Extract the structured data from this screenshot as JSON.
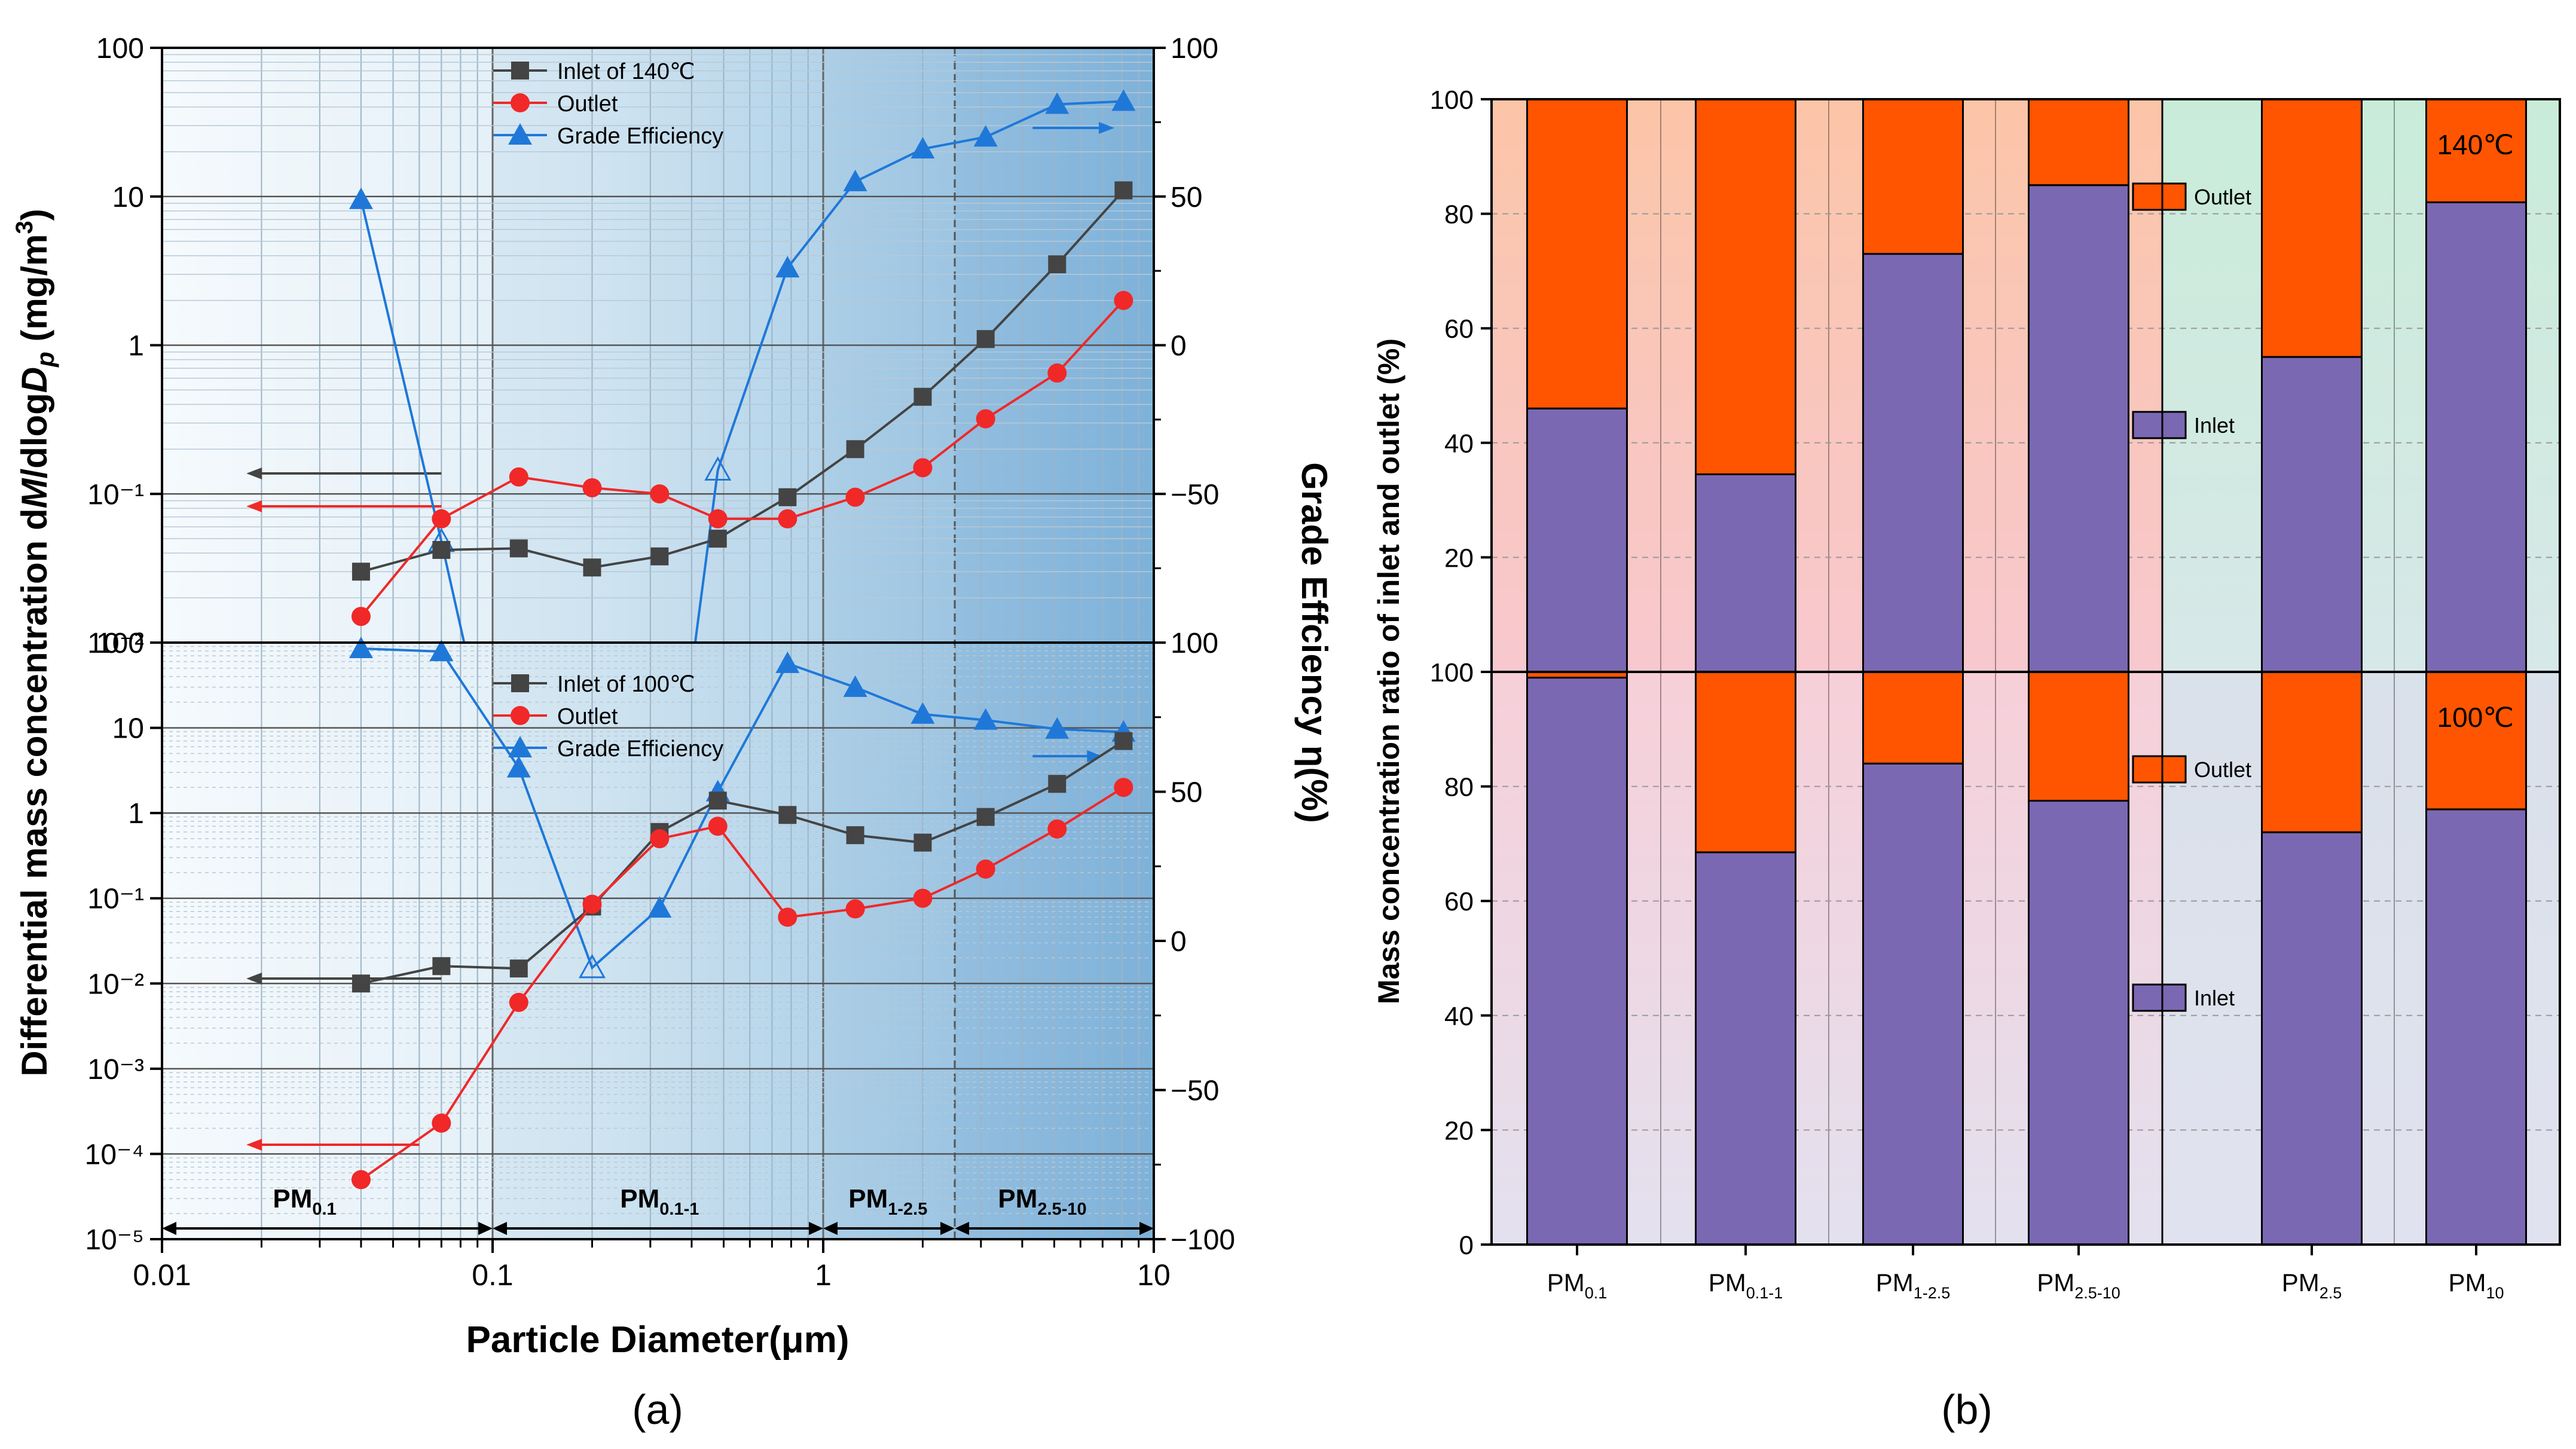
{
  "colors": {
    "inlet_series": "#444444",
    "outlet_series": "#f02828",
    "efficiency_series": "#1f78d8",
    "bar_outlet": "#ff5500",
    "bar_inlet": "#7b68b3",
    "axis": "#000000"
  },
  "labels": {
    "sub_a": "(a)",
    "sub_b": "(b)"
  },
  "chart_data": [
    {
      "type": "line",
      "title": "(a)",
      "xlabel": "Particle Diameter(μm)",
      "ylabel_left": "Differential mass concentration dM/dlogDp (mg/m³)",
      "ylabel_right": "Grade Effciency η(%)",
      "xscale": "log",
      "xlim": [
        0.01,
        10
      ],
      "x_ticks": [
        "0.01",
        "0.1",
        "1",
        "10"
      ],
      "regions": [
        {
          "name": "PM",
          "sub": "0.1",
          "range": [
            0.01,
            0.1
          ]
        },
        {
          "name": "PM",
          "sub": "0.1-1",
          "range": [
            0.1,
            1
          ]
        },
        {
          "name": "PM",
          "sub": "1-2.5",
          "range": [
            1,
            2.5
          ]
        },
        {
          "name": "PM",
          "sub": "2.5-10",
          "range": [
            2.5,
            10
          ]
        }
      ],
      "panels": [
        {
          "name": "top",
          "left_ylim": [
            0.01,
            100
          ],
          "left_ticks": [
            "10⁻²",
            "10⁻¹",
            "1",
            "10",
            "100"
          ],
          "right_ylim": [
            -100,
            100
          ],
          "right_ticks": [
            "−50",
            "0",
            "50",
            "100"
          ],
          "series": [
            {
              "name": "Inlet of 140℃",
              "role": "inlet",
              "x": [
                0.04,
                0.07,
                0.12,
                0.2,
                0.32,
                0.48,
                0.78,
                1.25,
                2.0,
                3.1,
                5.1,
                8.1
              ],
              "y": [
                0.03,
                0.042,
                0.043,
                0.032,
                0.038,
                0.05,
                0.095,
                0.2,
                0.45,
                1.1,
                3.5,
                11
              ]
            },
            {
              "name": "Outlet",
              "role": "outlet",
              "x": [
                0.04,
                0.07,
                0.12,
                0.2,
                0.32,
                0.48,
                0.78,
                1.25,
                2.0,
                3.1,
                5.1,
                8.1
              ],
              "y": [
                0.015,
                0.068,
                0.13,
                0.11,
                0.1,
                0.068,
                0.068,
                0.095,
                0.15,
                0.32,
                0.65,
                2.0
              ]
            },
            {
              "name": "Grade Efficiency",
              "role": "efficiency",
              "axis": "right",
              "x": [
                0.04,
                0.07,
                0.082,
                0.41,
                0.48,
                0.78,
                1.25,
                2.0,
                3.1,
                5.1,
                8.1
              ],
              "y": [
                49,
                -66,
                -100,
                -100,
                -42,
                26,
                55,
                66,
                70,
                81,
                82
              ],
              "hollow": [
                1,
                4
              ],
              "marked": [
                0,
                1,
                4,
                5,
                6,
                7,
                8,
                9,
                10
              ]
            }
          ]
        },
        {
          "name": "bottom",
          "left_ylim": [
            1e-05,
            100
          ],
          "left_ticks": [
            "10⁻⁵",
            "10⁻⁴",
            "10⁻³",
            "10⁻²",
            "10⁻¹",
            "1",
            "10",
            "100"
          ],
          "right_ylim": [
            -100,
            100
          ],
          "right_ticks": [
            "−100",
            "−50",
            "0",
            "50",
            "100"
          ],
          "series": [
            {
              "name": "Inlet of 100℃",
              "role": "inlet",
              "x": [
                0.04,
                0.07,
                0.12,
                0.2,
                0.32,
                0.48,
                0.78,
                1.25,
                2.0,
                3.1,
                5.1,
                8.1
              ],
              "y": [
                0.01,
                0.016,
                0.015,
                0.08,
                0.6,
                1.4,
                0.95,
                0.55,
                0.45,
                0.9,
                2.2,
                7
              ]
            },
            {
              "name": "Outlet",
              "role": "outlet",
              "x": [
                0.04,
                0.07,
                0.12,
                0.2,
                0.32,
                0.48,
                0.78,
                1.25,
                2.0,
                3.1,
                5.1,
                8.1
              ],
              "y": [
                5e-05,
                0.00023,
                0.006,
                0.085,
                0.5,
                0.7,
                0.06,
                0.075,
                0.1,
                0.22,
                0.65,
                2.0
              ]
            },
            {
              "name": "Grade Efficiency",
              "role": "efficiency",
              "axis": "right",
              "x": [
                0.04,
                0.07,
                0.12,
                0.2,
                0.32,
                0.48,
                0.78,
                1.25,
                2.0,
                3.1,
                5.1,
                8.1
              ],
              "y": [
                98,
                97,
                58,
                -9,
                11,
                50,
                93,
                85,
                76,
                74,
                71,
                70
              ],
              "hollow": [
                3
              ]
            }
          ]
        }
      ]
    },
    {
      "type": "bar",
      "stacked": true,
      "title": "(b)",
      "ylabel": "Mass concentration ratio of inlet and outlet (%)",
      "ylim": [
        0,
        100
      ],
      "y_ticks": [
        "0",
        "20",
        "40",
        "60",
        "80",
        "100"
      ],
      "categories": [
        {
          "name": "PM",
          "sub": "0.1"
        },
        {
          "name": "PM",
          "sub": "0.1-1"
        },
        {
          "name": "PM",
          "sub": "1-2.5"
        },
        {
          "name": "PM",
          "sub": "2.5-10"
        },
        {
          "name": "PM",
          "sub": "2.5"
        },
        {
          "name": "PM",
          "sub": "10"
        }
      ],
      "panels": [
        {
          "name": "top",
          "label": "140℃",
          "series": [
            {
              "name": "Inlet",
              "values": [
                46,
                34.5,
                73,
                85,
                55,
                82
              ]
            },
            {
              "name": "Outlet",
              "values": [
                54,
                65.5,
                27,
                15,
                45,
                18
              ]
            }
          ]
        },
        {
          "name": "bottom",
          "label": "100℃",
          "series": [
            {
              "name": "Inlet",
              "values": [
                99,
                68.5,
                84,
                77.5,
                72,
                76
              ]
            },
            {
              "name": "Outlet",
              "values": [
                1,
                31.5,
                16,
                22.5,
                28,
                24
              ]
            }
          ]
        }
      ],
      "legend": [
        "Outlet",
        "Inlet"
      ]
    }
  ]
}
